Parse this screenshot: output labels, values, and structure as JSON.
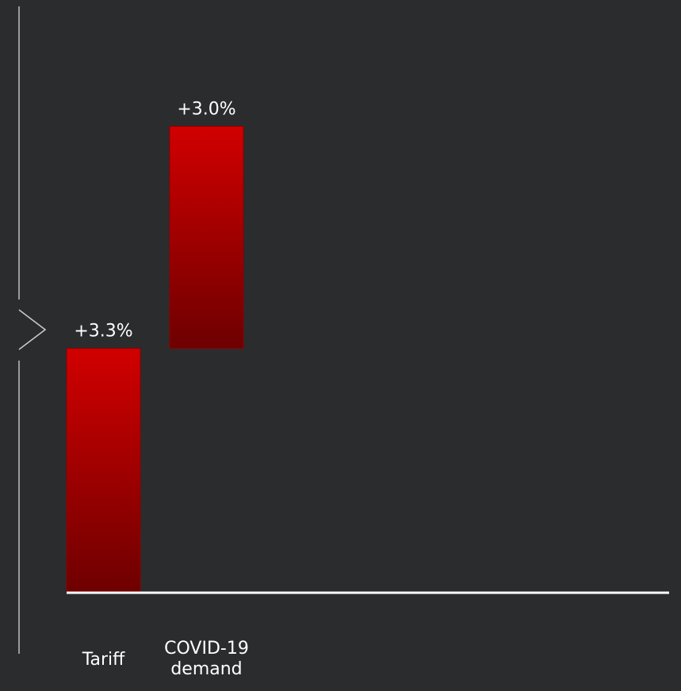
{
  "colors": {
    "background": "#2b2c2e",
    "bar_top": "#d10000",
    "bar_bottom": "#6e0000",
    "axis": "#ffffff",
    "side_rule": "#9a9a9a",
    "text": "#ffffff"
  },
  "nav": {
    "icon": "chevron-right-icon"
  },
  "chart_data": {
    "type": "bar",
    "subtype": "waterfall",
    "title": "",
    "xlabel": "",
    "ylabel": "",
    "categories": [
      "Tariff",
      "COVID-19\ndemand"
    ],
    "series": [
      {
        "values": [
          3.3,
          3.0
        ],
        "data_labels": [
          "+3.3%",
          "+3.0%"
        ]
      }
    ],
    "ylim": [
      0,
      7
    ],
    "grid": false,
    "legend": "none"
  }
}
